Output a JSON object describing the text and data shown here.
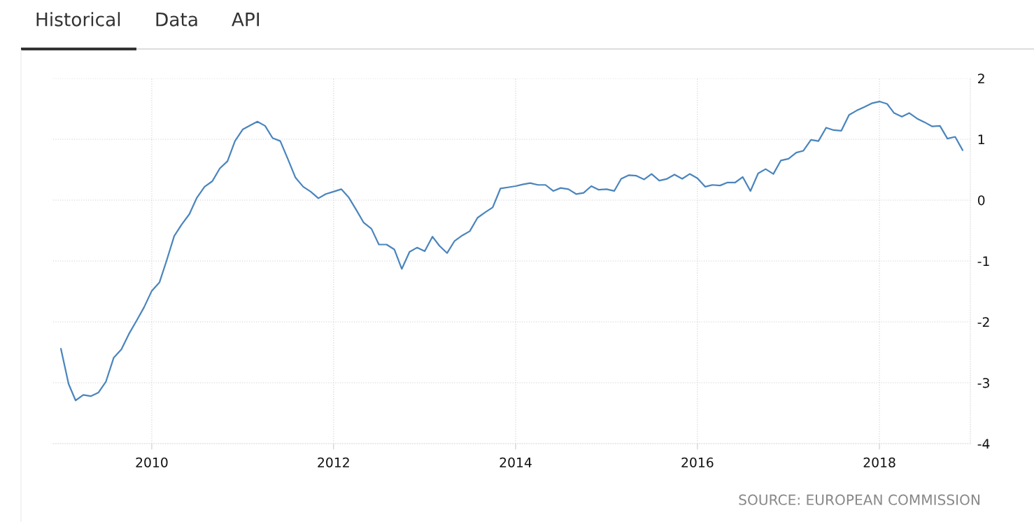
{
  "chart_data": {
    "type": "line",
    "x": [
      "2009-01",
      "2009-02",
      "2009-03",
      "2009-04",
      "2009-05",
      "2009-06",
      "2009-07",
      "2009-08",
      "2009-09",
      "2009-10",
      "2009-11",
      "2009-12",
      "2010-01",
      "2010-02",
      "2010-03",
      "2010-04",
      "2010-05",
      "2010-06",
      "2010-07",
      "2010-08",
      "2010-09",
      "2010-10",
      "2010-11",
      "2010-12",
      "2011-01",
      "2011-02",
      "2011-03",
      "2011-04",
      "2011-05",
      "2011-06",
      "2011-07",
      "2011-08",
      "2011-09",
      "2011-10",
      "2011-11",
      "2011-12",
      "2012-01",
      "2012-02",
      "2012-03",
      "2012-04",
      "2012-05",
      "2012-06",
      "2012-07",
      "2012-08",
      "2012-09",
      "2012-10",
      "2012-11",
      "2012-12",
      "2013-01",
      "2013-02",
      "2013-03",
      "2013-04",
      "2013-05",
      "2013-06",
      "2013-07",
      "2013-08",
      "2013-09",
      "2013-10",
      "2013-11",
      "2013-12",
      "2014-01",
      "2014-02",
      "2014-03",
      "2014-04",
      "2014-05",
      "2014-06",
      "2014-07",
      "2014-08",
      "2014-09",
      "2014-10",
      "2014-11",
      "2014-12",
      "2015-01",
      "2015-02",
      "2015-03",
      "2015-04",
      "2015-05",
      "2015-06",
      "2015-07",
      "2015-08",
      "2015-09",
      "2015-10",
      "2015-11",
      "2015-12",
      "2016-01",
      "2016-02",
      "2016-03",
      "2016-04",
      "2016-05",
      "2016-06",
      "2016-07",
      "2016-08",
      "2016-09",
      "2016-10",
      "2016-11",
      "2016-12",
      "2017-01",
      "2017-02",
      "2017-03",
      "2017-04",
      "2017-05",
      "2017-06",
      "2017-07",
      "2017-08",
      "2017-09",
      "2017-10",
      "2017-11",
      "2017-12",
      "2018-01",
      "2018-02",
      "2018-03",
      "2018-04",
      "2018-05",
      "2018-06",
      "2018-07",
      "2018-08",
      "2018-09",
      "2018-10",
      "2018-11",
      "2018-12"
    ],
    "series": [
      {
        "color": "#4a85bd",
        "values": [
          -2.44,
          -3.02,
          -3.29,
          -3.2,
          -3.22,
          -3.16,
          -2.98,
          -2.59,
          -2.45,
          -2.2,
          -1.98,
          -1.76,
          -1.49,
          -1.35,
          -1.0,
          -0.59,
          -0.4,
          -0.23,
          0.04,
          0.22,
          0.31,
          0.52,
          0.64,
          0.97,
          1.16,
          1.23,
          1.29,
          1.22,
          1.02,
          0.97,
          0.68,
          0.37,
          0.22,
          0.14,
          0.03,
          0.1,
          0.14,
          0.18,
          0.05,
          -0.16,
          -0.37,
          -0.47,
          -0.73,
          -0.73,
          -0.81,
          -1.13,
          -0.85,
          -0.78,
          -0.84,
          -0.6,
          -0.75,
          -0.87,
          -0.67,
          -0.58,
          -0.51,
          -0.29,
          -0.2,
          -0.12,
          0.19,
          0.21,
          0.23,
          0.26,
          0.28,
          0.25,
          0.25,
          0.15,
          0.2,
          0.18,
          0.1,
          0.12,
          0.23,
          0.17,
          0.18,
          0.15,
          0.35,
          0.41,
          0.4,
          0.34,
          0.43,
          0.32,
          0.35,
          0.42,
          0.35,
          0.43,
          0.36,
          0.22,
          0.25,
          0.24,
          0.29,
          0.29,
          0.38,
          0.15,
          0.44,
          0.51,
          0.43,
          0.65,
          0.68,
          0.78,
          0.81,
          0.99,
          0.97,
          1.19,
          1.15,
          1.14,
          1.4,
          1.47,
          1.53,
          1.59,
          1.62,
          1.58,
          1.43,
          1.37,
          1.43,
          1.34,
          1.28,
          1.21,
          1.22,
          1.01,
          1.04,
          0.82
        ]
      }
    ],
    "xlim": [
      "2008-12-01",
      "2019-01-01"
    ],
    "xticks": [
      {
        "value": "2010-01-01",
        "label": "2010"
      },
      {
        "value": "2012-01-01",
        "label": "2012"
      },
      {
        "value": "2014-01-01",
        "label": "2014"
      },
      {
        "value": "2016-01-01",
        "label": "2016"
      },
      {
        "value": "2018-01-01",
        "label": "2018"
      }
    ],
    "ylim": [
      -4,
      2
    ],
    "yticks": [
      -4,
      -3,
      -2,
      -1,
      0,
      1,
      2
    ],
    "grid": true,
    "annotations": [
      "Historical",
      "Data",
      "API",
      "SOURCE: EUROPEAN COMMISSION"
    ]
  }
}
